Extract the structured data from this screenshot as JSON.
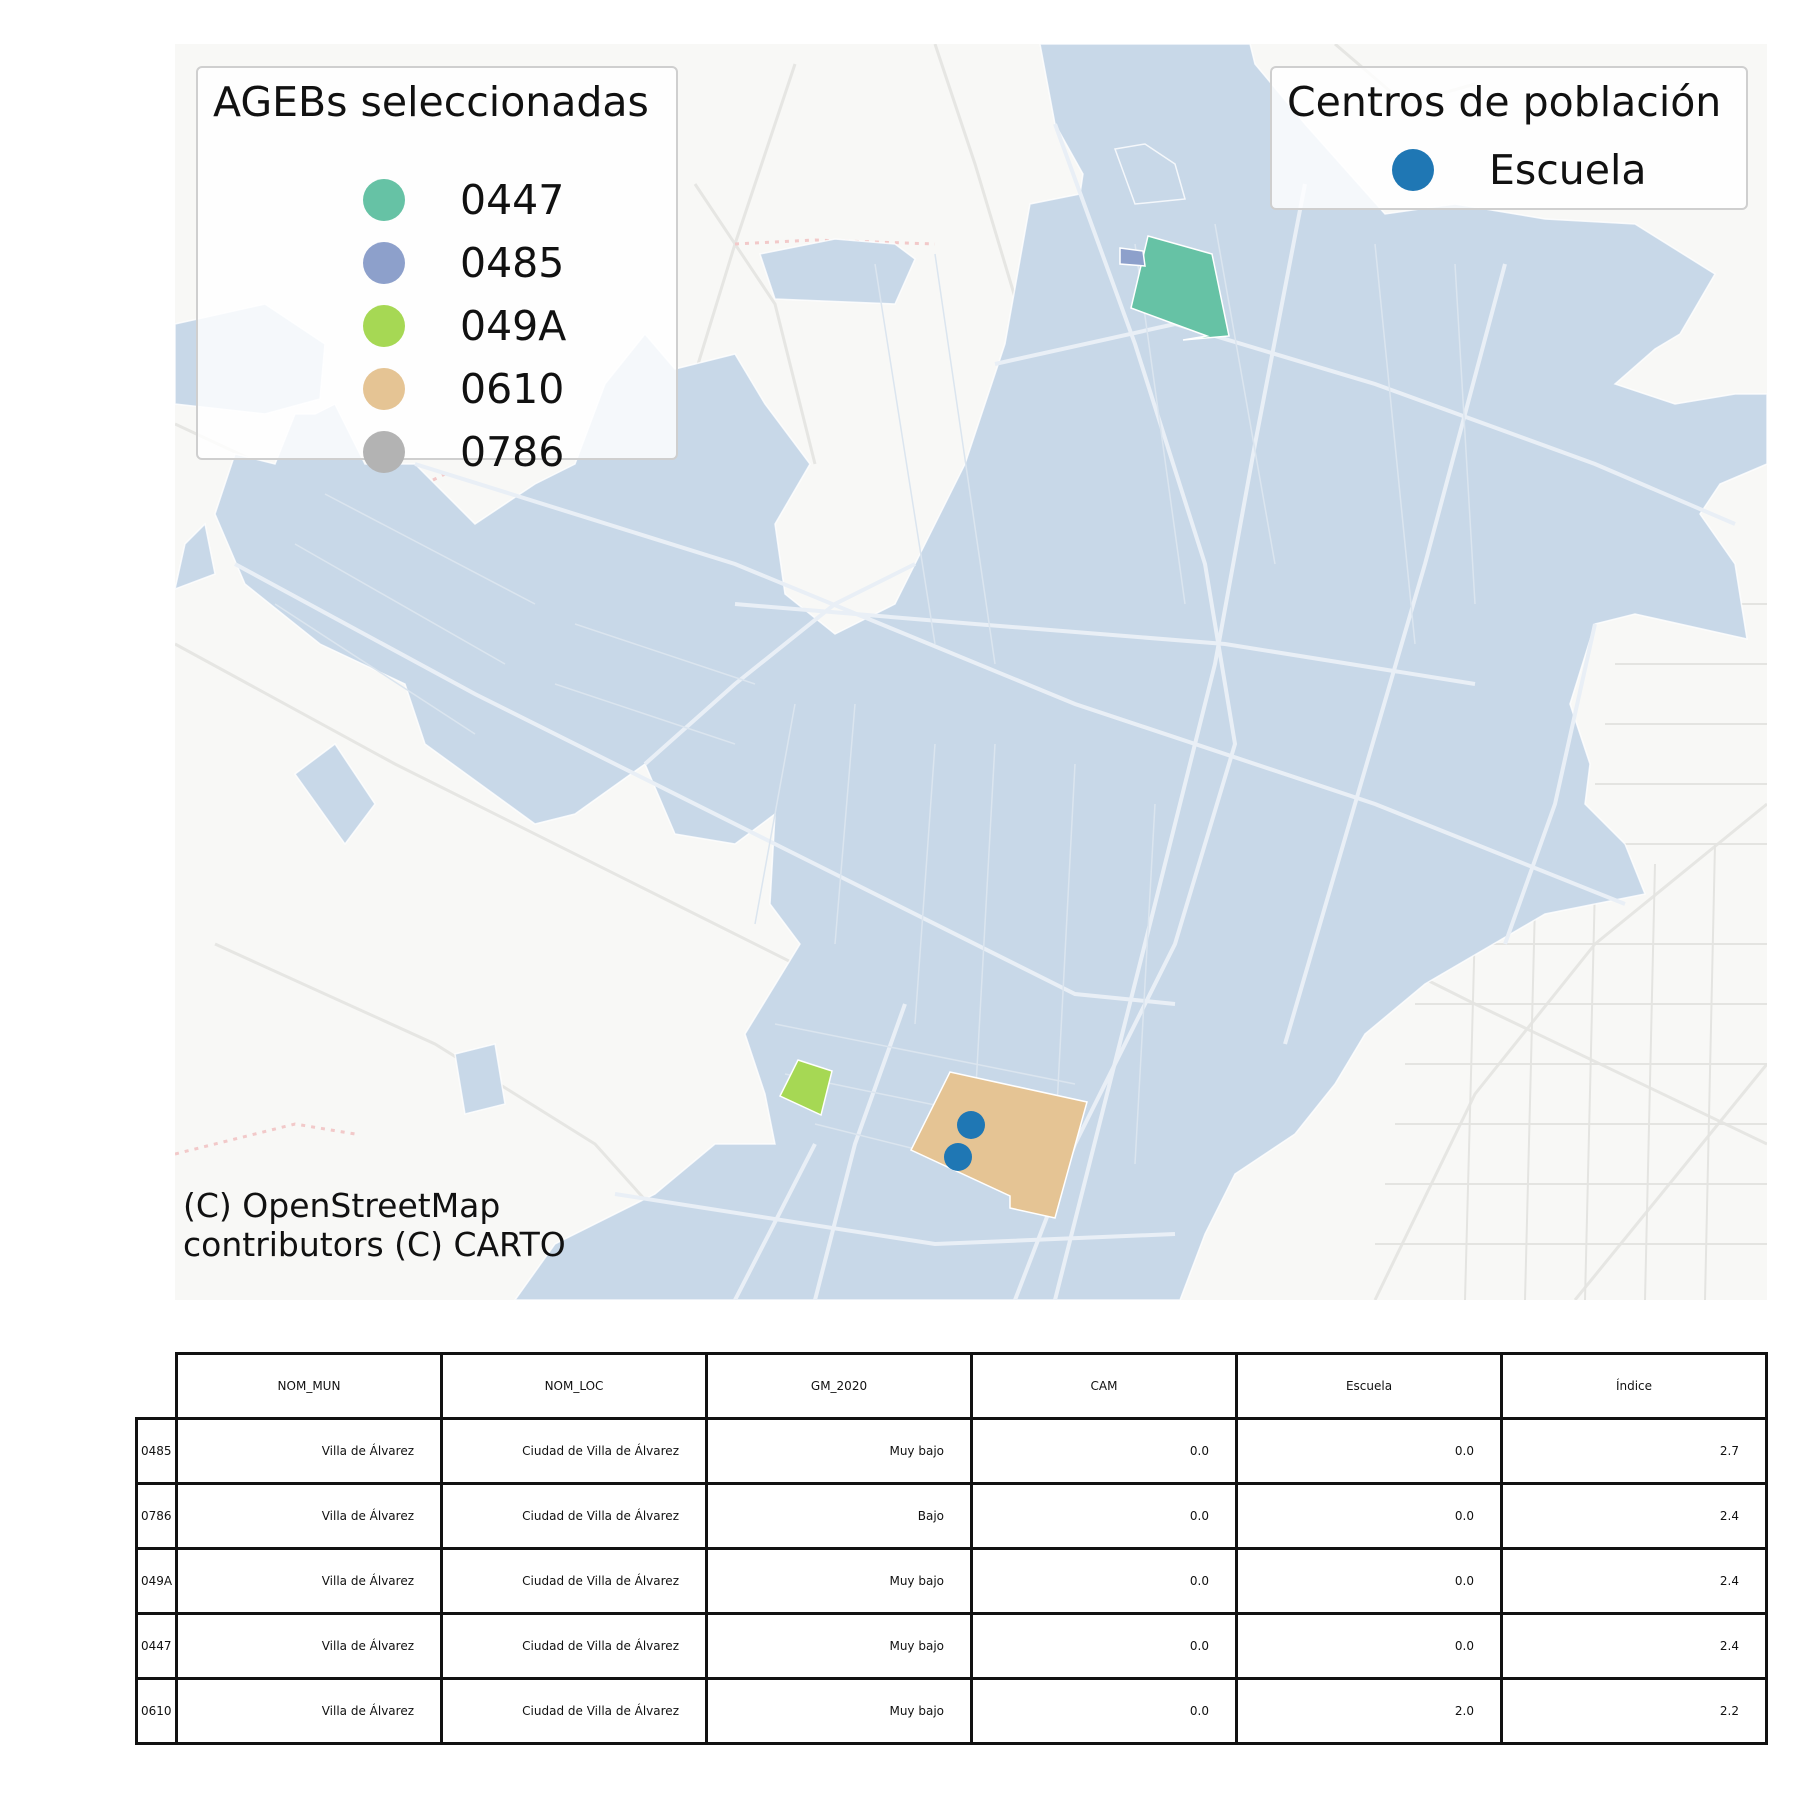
{
  "map": {
    "base_fill": "#f8f8f6",
    "ageb_fill": "#c8d8e8",
    "attribution": "(C) OpenStreetMap contributors (C) CARTO"
  },
  "legend_agebs": {
    "title": "AGEBs seleccionadas",
    "items": [
      {
        "label": "0447",
        "color": "#66c2a5"
      },
      {
        "label": "0485",
        "color": "#8da0cb"
      },
      {
        "label": "049A",
        "color": "#a6d854"
      },
      {
        "label": "0610",
        "color": "#e5c494"
      },
      {
        "label": "0786",
        "color": "#b3b3b3"
      }
    ]
  },
  "legend_centros": {
    "title": "Centros de población",
    "items": [
      {
        "label": "Escuela",
        "color": "#1f77b4"
      }
    ]
  },
  "table": {
    "columns": [
      "NOM_MUN",
      "NOM_LOC",
      "GM_2020",
      "CAM",
      "Escuela",
      "Índice"
    ],
    "rows": [
      {
        "index": "0485",
        "cells": [
          "Villa de Álvarez",
          "Ciudad de Villa de Álvarez",
          "Muy bajo",
          "0.0",
          "0.0",
          "2.7"
        ]
      },
      {
        "index": "0786",
        "cells": [
          "Villa de Álvarez",
          "Ciudad de Villa de Álvarez",
          "Bajo",
          "0.0",
          "0.0",
          "2.4"
        ]
      },
      {
        "index": "049A",
        "cells": [
          "Villa de Álvarez",
          "Ciudad de Villa de Álvarez",
          "Muy bajo",
          "0.0",
          "0.0",
          "2.4"
        ]
      },
      {
        "index": "0447",
        "cells": [
          "Villa de Álvarez",
          "Ciudad de Villa de Álvarez",
          "Muy bajo",
          "0.0",
          "0.0",
          "2.4"
        ]
      },
      {
        "index": "0610",
        "cells": [
          "Villa de Álvarez",
          "Ciudad de Villa de Álvarez",
          "Muy bajo",
          "0.0",
          "2.0",
          "2.2"
        ]
      }
    ]
  }
}
